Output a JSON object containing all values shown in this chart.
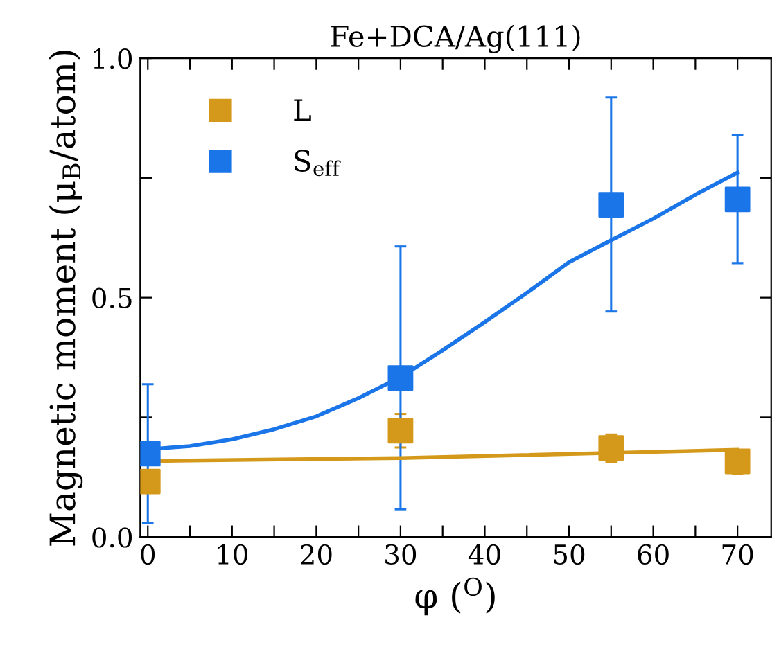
{
  "chart_data": {
    "type": "scatter",
    "title": "Fe+DCA/Ag(111)",
    "xlabel": "φ ($^{O}$)",
    "ylabel": "Magnetic moment (μ$_{B}$/atom)",
    "marker": "square",
    "legend": "top left",
    "grid": false,
    "xlim": [
      -0.9,
      74
    ],
    "ylim": [
      0,
      1.0
    ],
    "xticks": [
      0,
      {
        "value": 5,
        "label": null
      },
      10,
      {
        "value": 15,
        "label": null
      },
      20,
      {
        "value": 25,
        "label": null
      },
      30,
      {
        "value": 35,
        "label": null
      },
      40,
      {
        "value": 45,
        "label": null
      },
      50,
      {
        "value": 55,
        "label": null
      },
      60,
      {
        "value": 65,
        "label": null
      },
      70
    ],
    "yticks": [
      {
        "value": 0,
        "label": "0.0"
      },
      {
        "value": 0.25,
        "label": null
      },
      0.5,
      {
        "value": 0.75,
        "label": null
      },
      {
        "value": 1.0,
        "label": "1.0"
      }
    ],
    "series": [
      {
        "name": "L",
        "color": "#d4991a",
        "x": [
          0,
          30,
          55,
          70
        ],
        "values": [
          0.116,
          0.222,
          0.186,
          0.158
        ],
        "errors": [
          null,
          [
            0.187,
            0.257
          ],
          [
            0.157,
            0.214
          ],
          [
            0.132,
            0.18
          ]
        ]
      },
      {
        "name": "S$_{eff}$",
        "color": "#1a75e8",
        "x": [
          0,
          30,
          55,
          70
        ],
        "values": [
          0.174,
          0.332,
          0.694,
          0.705
        ],
        "errors": [
          [
            0.03,
            0.319
          ],
          [
            0.058,
            0.607
          ],
          [
            0.471,
            0.918
          ],
          [
            0.572,
            0.84
          ]
        ]
      },
      {
        "type": "line",
        "marker": "none",
        "color": "#d4991a",
        "x": [
          1.5,
          30,
          70
        ],
        "values": [
          0.159,
          0.165,
          0.182
        ]
      },
      {
        "type": "line",
        "marker": "none",
        "color": "#1a75e8",
        "x": [
          0,
          5,
          10,
          15,
          20,
          25,
          30,
          35,
          40,
          45,
          50,
          55,
          60,
          65,
          70
        ],
        "values": [
          0.183,
          0.19,
          0.204,
          0.225,
          0.252,
          0.29,
          0.334,
          0.39,
          0.449,
          0.51,
          0.574,
          0.62,
          0.665,
          0.715,
          0.761
        ]
      }
    ]
  }
}
